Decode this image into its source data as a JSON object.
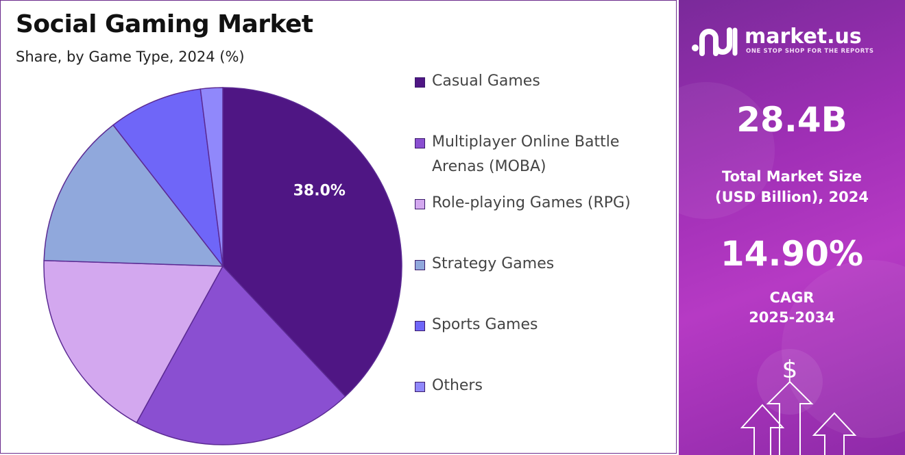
{
  "chart_data": {
    "type": "pie",
    "title": "Social Gaming Market",
    "subtitle": "Share, by Game Type, 2024 (%)",
    "categories": [
      "Casual Games",
      "Multiplayer Online Battle Arenas (MOBA)",
      "Role-playing Games (RPG)",
      "Strategy Games",
      "Sports Games",
      "Others"
    ],
    "legend_lines": [
      [
        "Casual Games"
      ],
      [
        "Multiplayer Online Battle",
        "Arenas (MOBA)"
      ],
      [
        "Role-playing Games (RPG)"
      ],
      [
        "Strategy Games"
      ],
      [
        "Sports Games"
      ],
      [
        "Others"
      ]
    ],
    "values": [
      38.0,
      20.0,
      17.5,
      14.0,
      8.5,
      2.0
    ],
    "colors": [
      "#4f1684",
      "#8a4fd1",
      "#d3a8ef",
      "#90a8dc",
      "#6f66f8",
      "#9088fb"
    ],
    "data_labels": [
      "38.0%",
      "",
      "",
      "",
      "",
      ""
    ],
    "legend_position": "right"
  },
  "side_panel": {
    "brand_name": "market.us",
    "brand_tagline": "ONE STOP SHOP FOR THE REPORTS",
    "market_size_value": "28.4B",
    "market_size_label_line1": "Total Market Size",
    "market_size_label_line2": "(USD Billion), 2024",
    "cagr_value": "14.90%",
    "cagr_label_line1": "CAGR",
    "cagr_label_line2": "2025-2034",
    "currency_symbol": "$"
  }
}
